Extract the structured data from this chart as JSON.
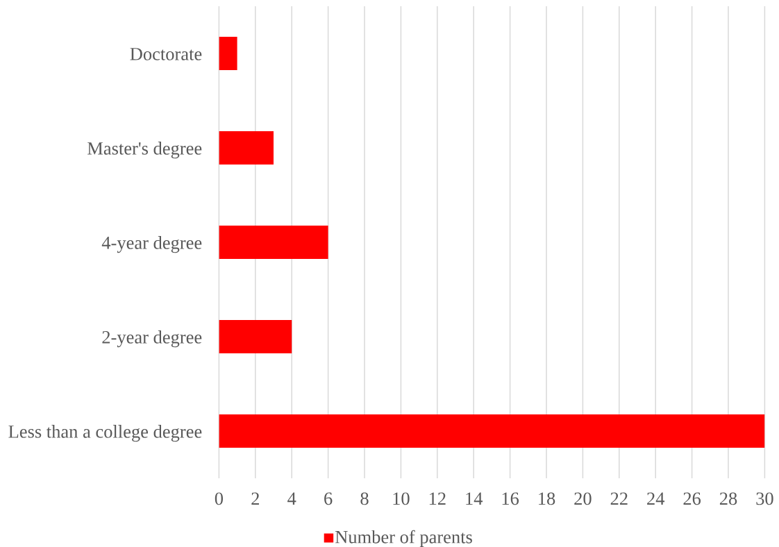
{
  "chart_data": {
    "type": "bar",
    "orientation": "horizontal",
    "categories": [
      "Doctorate",
      "Master's degree",
      "4-year degree",
      "2-year degree",
      "Less than a college degree"
    ],
    "series": [
      {
        "name": "Number of parents",
        "color": "#ff0000",
        "values": [
          1,
          3,
          6,
          4,
          30
        ]
      }
    ],
    "xlim": [
      0,
      30
    ],
    "xticks": [
      0,
      2,
      4,
      6,
      8,
      10,
      12,
      14,
      16,
      18,
      20,
      22,
      24,
      26,
      28,
      30
    ],
    "grid": "x",
    "legend": "bottom"
  }
}
